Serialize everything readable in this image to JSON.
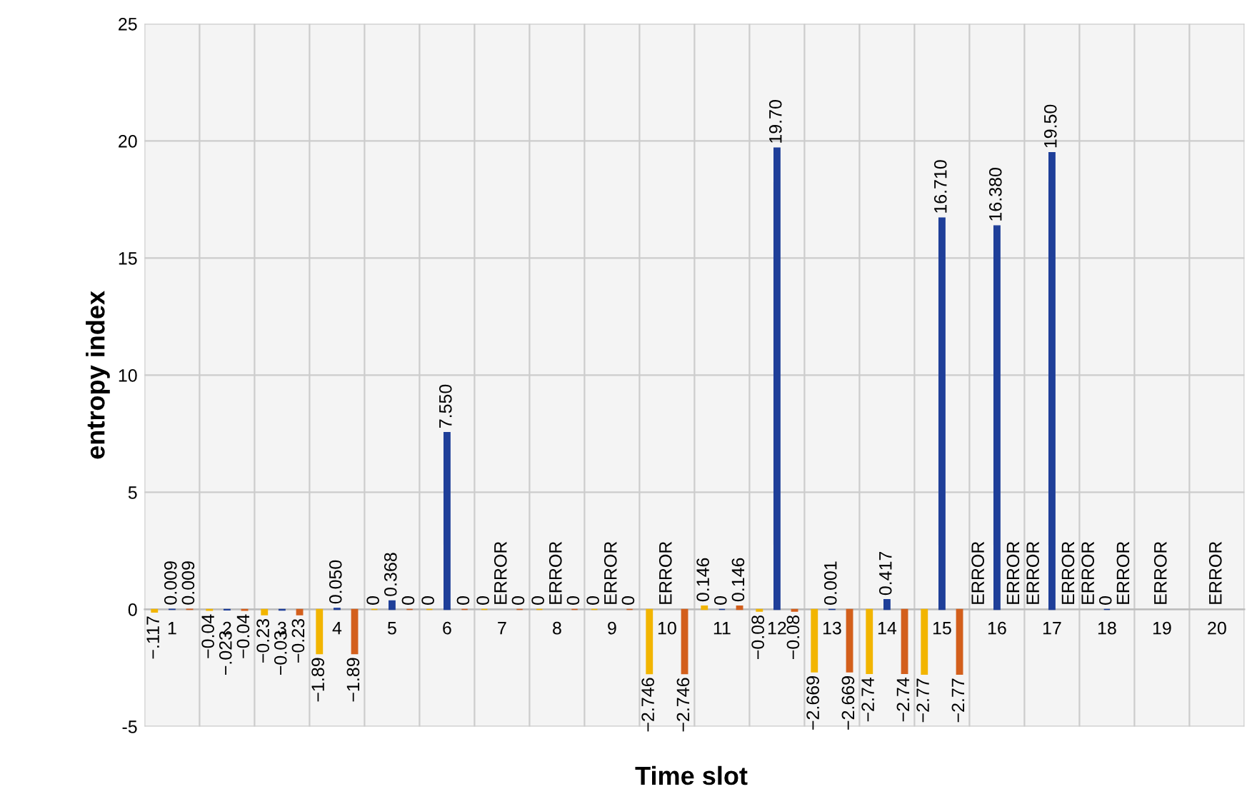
{
  "chart_data": {
    "type": "bar",
    "xlabel": "Time slot",
    "ylabel": "entropy index",
    "categories": [
      "1",
      "2",
      "3",
      "4",
      "5",
      "6",
      "7",
      "8",
      "9",
      "10",
      "11",
      "12",
      "13",
      "14",
      "15",
      "16",
      "17",
      "18",
      "19",
      "20"
    ],
    "series": [
      {
        "color": "#f2b500",
        "values": [
          -0.117,
          -0.04,
          -0.23,
          -1.89,
          0,
          0,
          0,
          0,
          0,
          -2.746,
          0.146,
          -0.08,
          -2.669,
          -2.74,
          -2.77,
          null,
          null,
          null,
          null,
          null
        ],
        "value_labels": [
          "−.117",
          "−0.04",
          "−0.23",
          "−1.89",
          "0",
          "0",
          "0",
          "0",
          "0",
          "−2.746",
          "0.146",
          "−0.08",
          "−2.669",
          "−2.74",
          "−2.77",
          "ERROR",
          "ERROR",
          "ERROR",
          null,
          null
        ]
      },
      {
        "color": "#1f3f99",
        "values": [
          0.009,
          -0.023,
          -0.03,
          0.05,
          0.368,
          7.55,
          null,
          null,
          null,
          null,
          0,
          19.7,
          0.001,
          0.417,
          16.71,
          16.38,
          19.5,
          0,
          null,
          null
        ],
        "value_labels": [
          "0.009",
          "−.023",
          "−0.03",
          "0.050",
          "0.368",
          "7.550",
          "ERROR",
          "ERROR",
          "ERROR",
          "ERROR",
          "0",
          "19.70",
          "0.001",
          "0.417",
          "16.710",
          "16.380",
          "19.50",
          "0",
          "ERROR",
          "ERROR"
        ]
      },
      {
        "color": "#d35f1c",
        "values": [
          0.009,
          -0.04,
          -0.23,
          -1.89,
          0,
          0,
          0,
          0,
          0,
          -2.746,
          0.146,
          -0.08,
          -2.669,
          -2.74,
          -2.77,
          null,
          null,
          null,
          null,
          null
        ],
        "value_labels": [
          "0.009",
          "−0.04",
          "−0.23",
          "−1.89",
          "0",
          "0",
          "0",
          "0",
          "0",
          "−2.746",
          "0.146",
          "−0.08",
          "−2.669",
          "−2.74",
          "−2.77",
          "ERROR",
          "ERROR",
          "ERROR",
          null,
          null
        ]
      }
    ],
    "ylim": [
      -5,
      25
    ],
    "yticks": [
      -5,
      0,
      5,
      10,
      15,
      20,
      25
    ],
    "grid": true
  }
}
